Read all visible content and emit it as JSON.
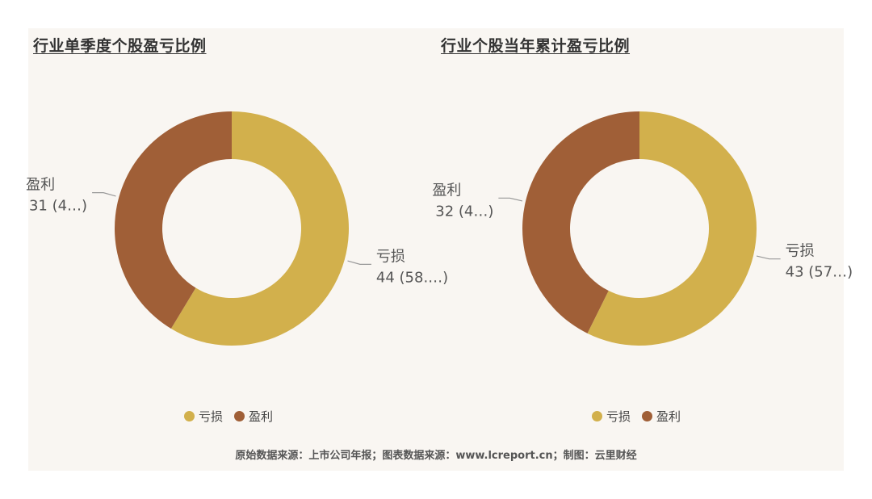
{
  "colors": {
    "loss": "#d2b04c",
    "profit": "#a05f37"
  },
  "legend": {
    "loss_label": "亏损",
    "profit_label": "盈利"
  },
  "chart_data": [
    {
      "type": "pie",
      "title": "行业单季度个股盈亏比例",
      "labels": [
        "亏损",
        "盈利"
      ],
      "values": [
        44,
        31
      ],
      "label_texts": [
        "44 (58.…)",
        "31 (4…)"
      ]
    },
    {
      "type": "pie",
      "title": "行业个股当年累计盈亏比例",
      "labels": [
        "亏损",
        "盈利"
      ],
      "values": [
        43,
        32
      ],
      "label_texts": [
        "43 (57…)",
        "32 (4…)"
      ]
    }
  ],
  "source": "原始数据来源：上市公司年报；图表数据来源：www.lcreport.cn；制图：云里财经"
}
